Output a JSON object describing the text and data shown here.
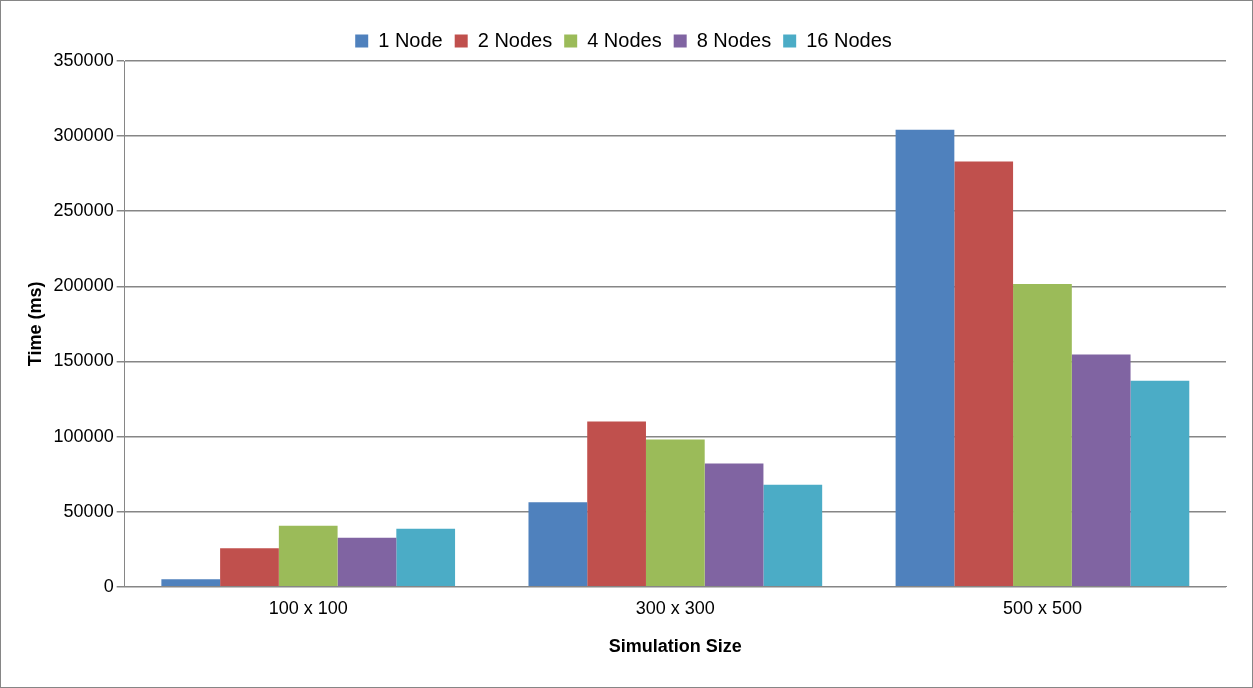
{
  "chart_data": {
    "type": "bar",
    "xlabel": "Simulation Size",
    "ylabel": "Time (ms)",
    "categories": [
      "100 x 100",
      "300 x 300",
      "500 x 500"
    ],
    "series": [
      {
        "name": "1 Node",
        "color": "#4f81bd",
        "values": [
          5000,
          56300,
          304200
        ]
      },
      {
        "name": "2 Nodes",
        "color": "#c0504d",
        "values": [
          25700,
          110000,
          283100
        ]
      },
      {
        "name": "4 Nodes",
        "color": "#9bbb59",
        "values": [
          40700,
          98000,
          201500
        ]
      },
      {
        "name": "8 Nodes",
        "color": "#8064a2",
        "values": [
          32700,
          82000,
          154700
        ]
      },
      {
        "name": "16 Nodes",
        "color": "#4bacc6",
        "values": [
          38700,
          68000,
          137100
        ]
      }
    ],
    "ylim": [
      0,
      350000
    ],
    "yticks": [
      0,
      50000,
      100000,
      150000,
      200000,
      250000,
      300000,
      350000
    ],
    "grid": "y",
    "legend": "top"
  }
}
